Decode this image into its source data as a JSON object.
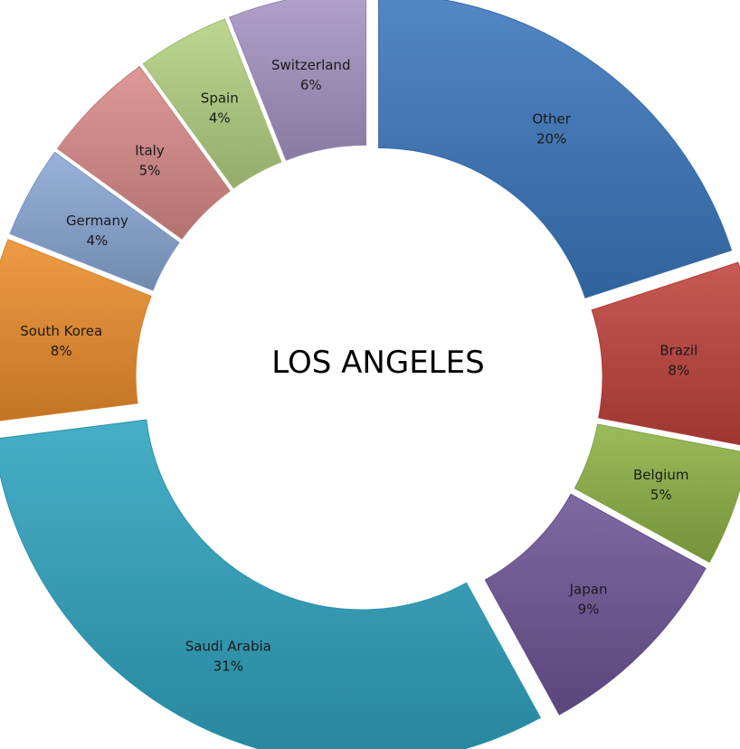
{
  "chart_data": {
    "type": "pie",
    "variant": "exploded-donut",
    "title": "LOS ANGELES",
    "unit": "%",
    "slices": [
      {
        "label": "Other",
        "value": 20,
        "display": "20%",
        "color": "#3b77bd"
      },
      {
        "label": "Brazil",
        "value": 8,
        "display": "8%",
        "color": "#c0423c"
      },
      {
        "label": "Belgium",
        "value": 5,
        "display": "5%",
        "color": "#8db245"
      },
      {
        "label": "Japan",
        "value": 9,
        "display": "9%",
        "color": "#6e5497"
      },
      {
        "label": "Saudi Arabia",
        "value": 31,
        "display": "31%",
        "color": "#2ea3bf"
      },
      {
        "label": "South Korea",
        "value": 8,
        "display": "8%",
        "color": "#ec8d2c"
      },
      {
        "label": "Germany",
        "value": 4,
        "display": "4%",
        "color": "#8aa8d6"
      },
      {
        "label": "Italy",
        "value": 5,
        "display": "5%",
        "color": "#d98b8a"
      },
      {
        "label": "Spain",
        "value": 4,
        "display": "4%",
        "color": "#b4d282"
      },
      {
        "label": "Switzerland",
        "value": 6,
        "display": "6%",
        "color": "#a795c4"
      }
    ]
  }
}
